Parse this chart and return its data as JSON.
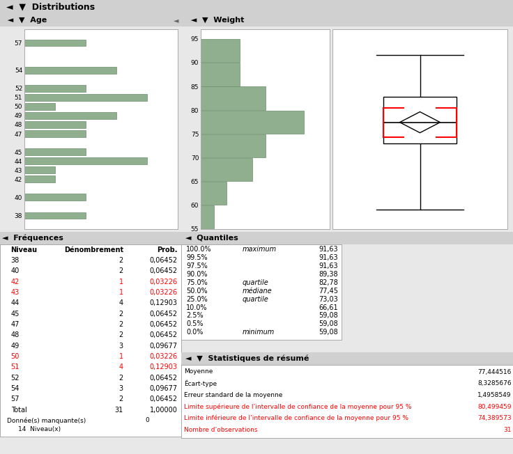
{
  "bg_color": "#e8e8e8",
  "panel_bg": "#ffffff",
  "header_bg": "#d0d0d0",
  "age_data": {
    "levels": [
      38,
      40,
      42,
      43,
      44,
      45,
      47,
      48,
      49,
      50,
      51,
      52,
      54,
      57
    ],
    "counts": [
      2,
      2,
      1,
      1,
      4,
      2,
      2,
      2,
      3,
      1,
      4,
      2,
      3,
      2
    ],
    "bar_color": "#8faf8f",
    "bar_edge": "#6a8f6a"
  },
  "weight_data": {
    "bin_edges": [
      55,
      60,
      65,
      70,
      75,
      80,
      85,
      90,
      95
    ],
    "counts": [
      1,
      2,
      4,
      5,
      8,
      5,
      3,
      3
    ],
    "bar_color": "#8faf8f",
    "bar_edge": "#6a8f6a",
    "boxplot": {
      "q1": 73.03,
      "median": 77.45,
      "q3": 82.78,
      "whisker_low": 59.08,
      "whisker_high": 91.63,
      "mean": 77.444516,
      "ci_low": 74.389573,
      "ci_high": 80.499459
    }
  },
  "freq_table": {
    "headers": [
      "Niveau",
      "Dénombrement",
      "Prob."
    ],
    "rows": [
      [
        "38",
        "2",
        "0,06452"
      ],
      [
        "40",
        "2",
        "0,06452"
      ],
      [
        "42",
        "1",
        "0,03226"
      ],
      [
        "43",
        "1",
        "0,03226"
      ],
      [
        "44",
        "4",
        "0,12903"
      ],
      [
        "45",
        "2",
        "0,06452"
      ],
      [
        "47",
        "2",
        "0,06452"
      ],
      [
        "48",
        "2",
        "0,06452"
      ],
      [
        "49",
        "3",
        "0,09677"
      ],
      [
        "50",
        "1",
        "0,03226"
      ],
      [
        "51",
        "4",
        "0,12903"
      ],
      [
        "52",
        "2",
        "0,06452"
      ],
      [
        "54",
        "3",
        "0,09677"
      ],
      [
        "57",
        "2",
        "0,06452"
      ]
    ],
    "total_row": [
      "Total",
      "31",
      "1,00000"
    ],
    "red_rows": [
      2,
      3,
      9,
      10
    ]
  },
  "quantiles_table": {
    "rows": [
      [
        "100.0%",
        "maximum",
        "91,63"
      ],
      [
        "99.5%",
        "",
        "91,63"
      ],
      [
        "97.5%",
        "",
        "91,63"
      ],
      [
        "90.0%",
        "",
        "89,38"
      ],
      [
        "75.0%",
        "quartile",
        "82,78"
      ],
      [
        "50.0%",
        "médiane",
        "77,45"
      ],
      [
        "25.0%",
        "quartile",
        "73,03"
      ],
      [
        "10.0%",
        "",
        "66,61"
      ],
      [
        "2.5%",
        "",
        "59,08"
      ],
      [
        "0.5%",
        "",
        "59,08"
      ],
      [
        "0.0%",
        "minimum",
        "59,08"
      ]
    ]
  },
  "stats_table": {
    "rows": [
      [
        "Moyenne",
        "77,444516"
      ],
      [
        "Écart-type",
        "8,3285676"
      ],
      [
        "Erreur standard de la moyenne",
        "1,4958549"
      ],
      [
        "Limite supérieure de l’intervalle de confiance de la moyenne pour 95 %",
        "80,499459"
      ],
      [
        "Limite inférieure de l’intervalle de confiance de la moyenne pour 95 %",
        "74,389573"
      ],
      [
        "Nombre d’observations",
        "31"
      ]
    ],
    "red_rows": [
      3,
      4,
      5
    ]
  }
}
